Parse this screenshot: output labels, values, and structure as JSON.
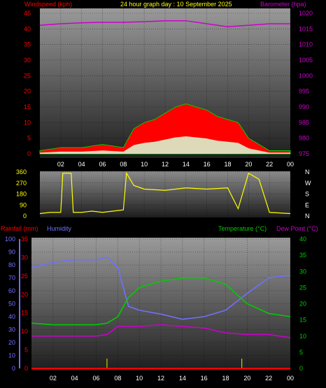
{
  "header": {
    "left_title": "Windspeed (kph)",
    "center_title": "24 hour graph day : 10 September 2025",
    "right_title": "Barometer (hpa)"
  },
  "colors": {
    "wind": "#ff0000",
    "gust_outline": "#00cc00",
    "avg_wind": "#ffffff",
    "barometer": "#cc00cc",
    "direction": "#ffff00",
    "rainfall": "#ff0000",
    "humidity": "#7070ff",
    "temperature": "#00cc00",
    "dewpoint": "#cc00cc",
    "axis_text_hours": "#ffffff"
  },
  "x_axis": {
    "hour_labels": [
      "02",
      "04",
      "06",
      "08",
      "10",
      "12",
      "14",
      "16",
      "18",
      "20",
      "22",
      "00"
    ]
  },
  "chart_data": [
    {
      "type": "area",
      "panel": "wind-barometer",
      "left_axis_ticks": [
        "45",
        "40",
        "35",
        "30",
        "25",
        "20",
        "15",
        "10",
        "5",
        "0"
      ],
      "right_axis_ticks": [
        "1020",
        "1015",
        "1010",
        "1005",
        "1000",
        "995",
        "990",
        "985",
        "980",
        "975"
      ],
      "ylim_left": [
        0,
        45
      ],
      "ylim_right": [
        975,
        1022
      ],
      "series": [
        {
          "name": "Windspeed (kph)",
          "x": [
            0,
            2,
            4,
            6,
            8,
            9,
            10,
            11,
            12,
            13,
            14,
            15,
            16,
            17,
            18,
            19,
            20,
            21,
            22,
            24
          ],
          "values": [
            1,
            2,
            2,
            3,
            2,
            8,
            10,
            11,
            13,
            15,
            16,
            15,
            14,
            12,
            11,
            10,
            5,
            3,
            1,
            1
          ]
        },
        {
          "name": "Barometer (hpa)",
          "x": [
            0,
            2,
            4,
            6,
            8,
            10,
            12,
            14,
            16,
            18,
            20,
            22,
            24
          ],
          "values": [
            1018,
            1018.5,
            1018.8,
            1019,
            1019,
            1019.2,
            1019.5,
            1019.5,
            1018.5,
            1017.5,
            1018,
            1018.5,
            1018.5
          ]
        }
      ]
    },
    {
      "type": "line",
      "panel": "wind-direction",
      "left_axis_ticks": [
        "360",
        "270",
        "180",
        "90",
        "0"
      ],
      "right_axis_ticks": [
        "N",
        "W",
        "S",
        "E",
        "N"
      ],
      "ylim": [
        0,
        360
      ],
      "series": [
        {
          "name": "Direction",
          "x": [
            0,
            1,
            2,
            2.2,
            3,
            3.2,
            4,
            5,
            6,
            7,
            8,
            8.3,
            9,
            10,
            12,
            14,
            16,
            18,
            19,
            20,
            21,
            22,
            24
          ],
          "values": [
            20,
            30,
            30,
            350,
            350,
            30,
            30,
            40,
            30,
            40,
            50,
            350,
            250,
            220,
            210,
            230,
            220,
            230,
            60,
            350,
            300,
            30,
            20
          ]
        }
      ]
    },
    {
      "type": "line",
      "panel": "temperature-humidity",
      "titles": {
        "rainfall": "Rainfall (mm)",
        "humidity": "Humidity",
        "temperature": "Temperature (°C)",
        "dewpoint": "Dew Point (°C)"
      },
      "humidity_ticks": [
        "100",
        "90",
        "80",
        "70",
        "60",
        "50",
        "40",
        "30",
        "20",
        "10",
        "0"
      ],
      "rain_ticks": [
        "35",
        "30",
        "25",
        "20",
        "15",
        "10",
        "5",
        "0"
      ],
      "temp_ticks": [
        "40",
        "35",
        "30",
        "25",
        "20",
        "15",
        "10",
        "5",
        "0"
      ],
      "series": [
        {
          "name": "Humidity",
          "x": [
            0,
            2,
            4,
            6,
            7,
            8,
            9,
            10,
            12,
            14,
            16,
            18,
            20,
            22,
            24
          ],
          "values": [
            78,
            82,
            84,
            84,
            86,
            78,
            48,
            45,
            42,
            38,
            40,
            45,
            58,
            70,
            72
          ]
        },
        {
          "name": "Temperature (°C)",
          "x": [
            0,
            2,
            4,
            6,
            7,
            8,
            9,
            10,
            12,
            14,
            16,
            18,
            20,
            22,
            24
          ],
          "values": [
            14,
            13.5,
            13.5,
            13.5,
            14,
            16,
            22,
            25,
            27,
            28,
            28,
            26,
            20,
            17,
            16
          ]
        },
        {
          "name": "Dew Point (°C)",
          "x": [
            0,
            2,
            4,
            6,
            7,
            8,
            9,
            10,
            12,
            14,
            16,
            18,
            20,
            22,
            24
          ],
          "values": [
            10,
            10,
            10,
            10,
            10.5,
            13,
            13,
            13,
            13.5,
            13,
            12.5,
            11,
            10.5,
            10.5,
            9.5
          ]
        },
        {
          "name": "Rainfall (mm)",
          "x": [
            7,
            19.5
          ],
          "values": [
            0.5,
            0.5
          ]
        }
      ]
    }
  ]
}
